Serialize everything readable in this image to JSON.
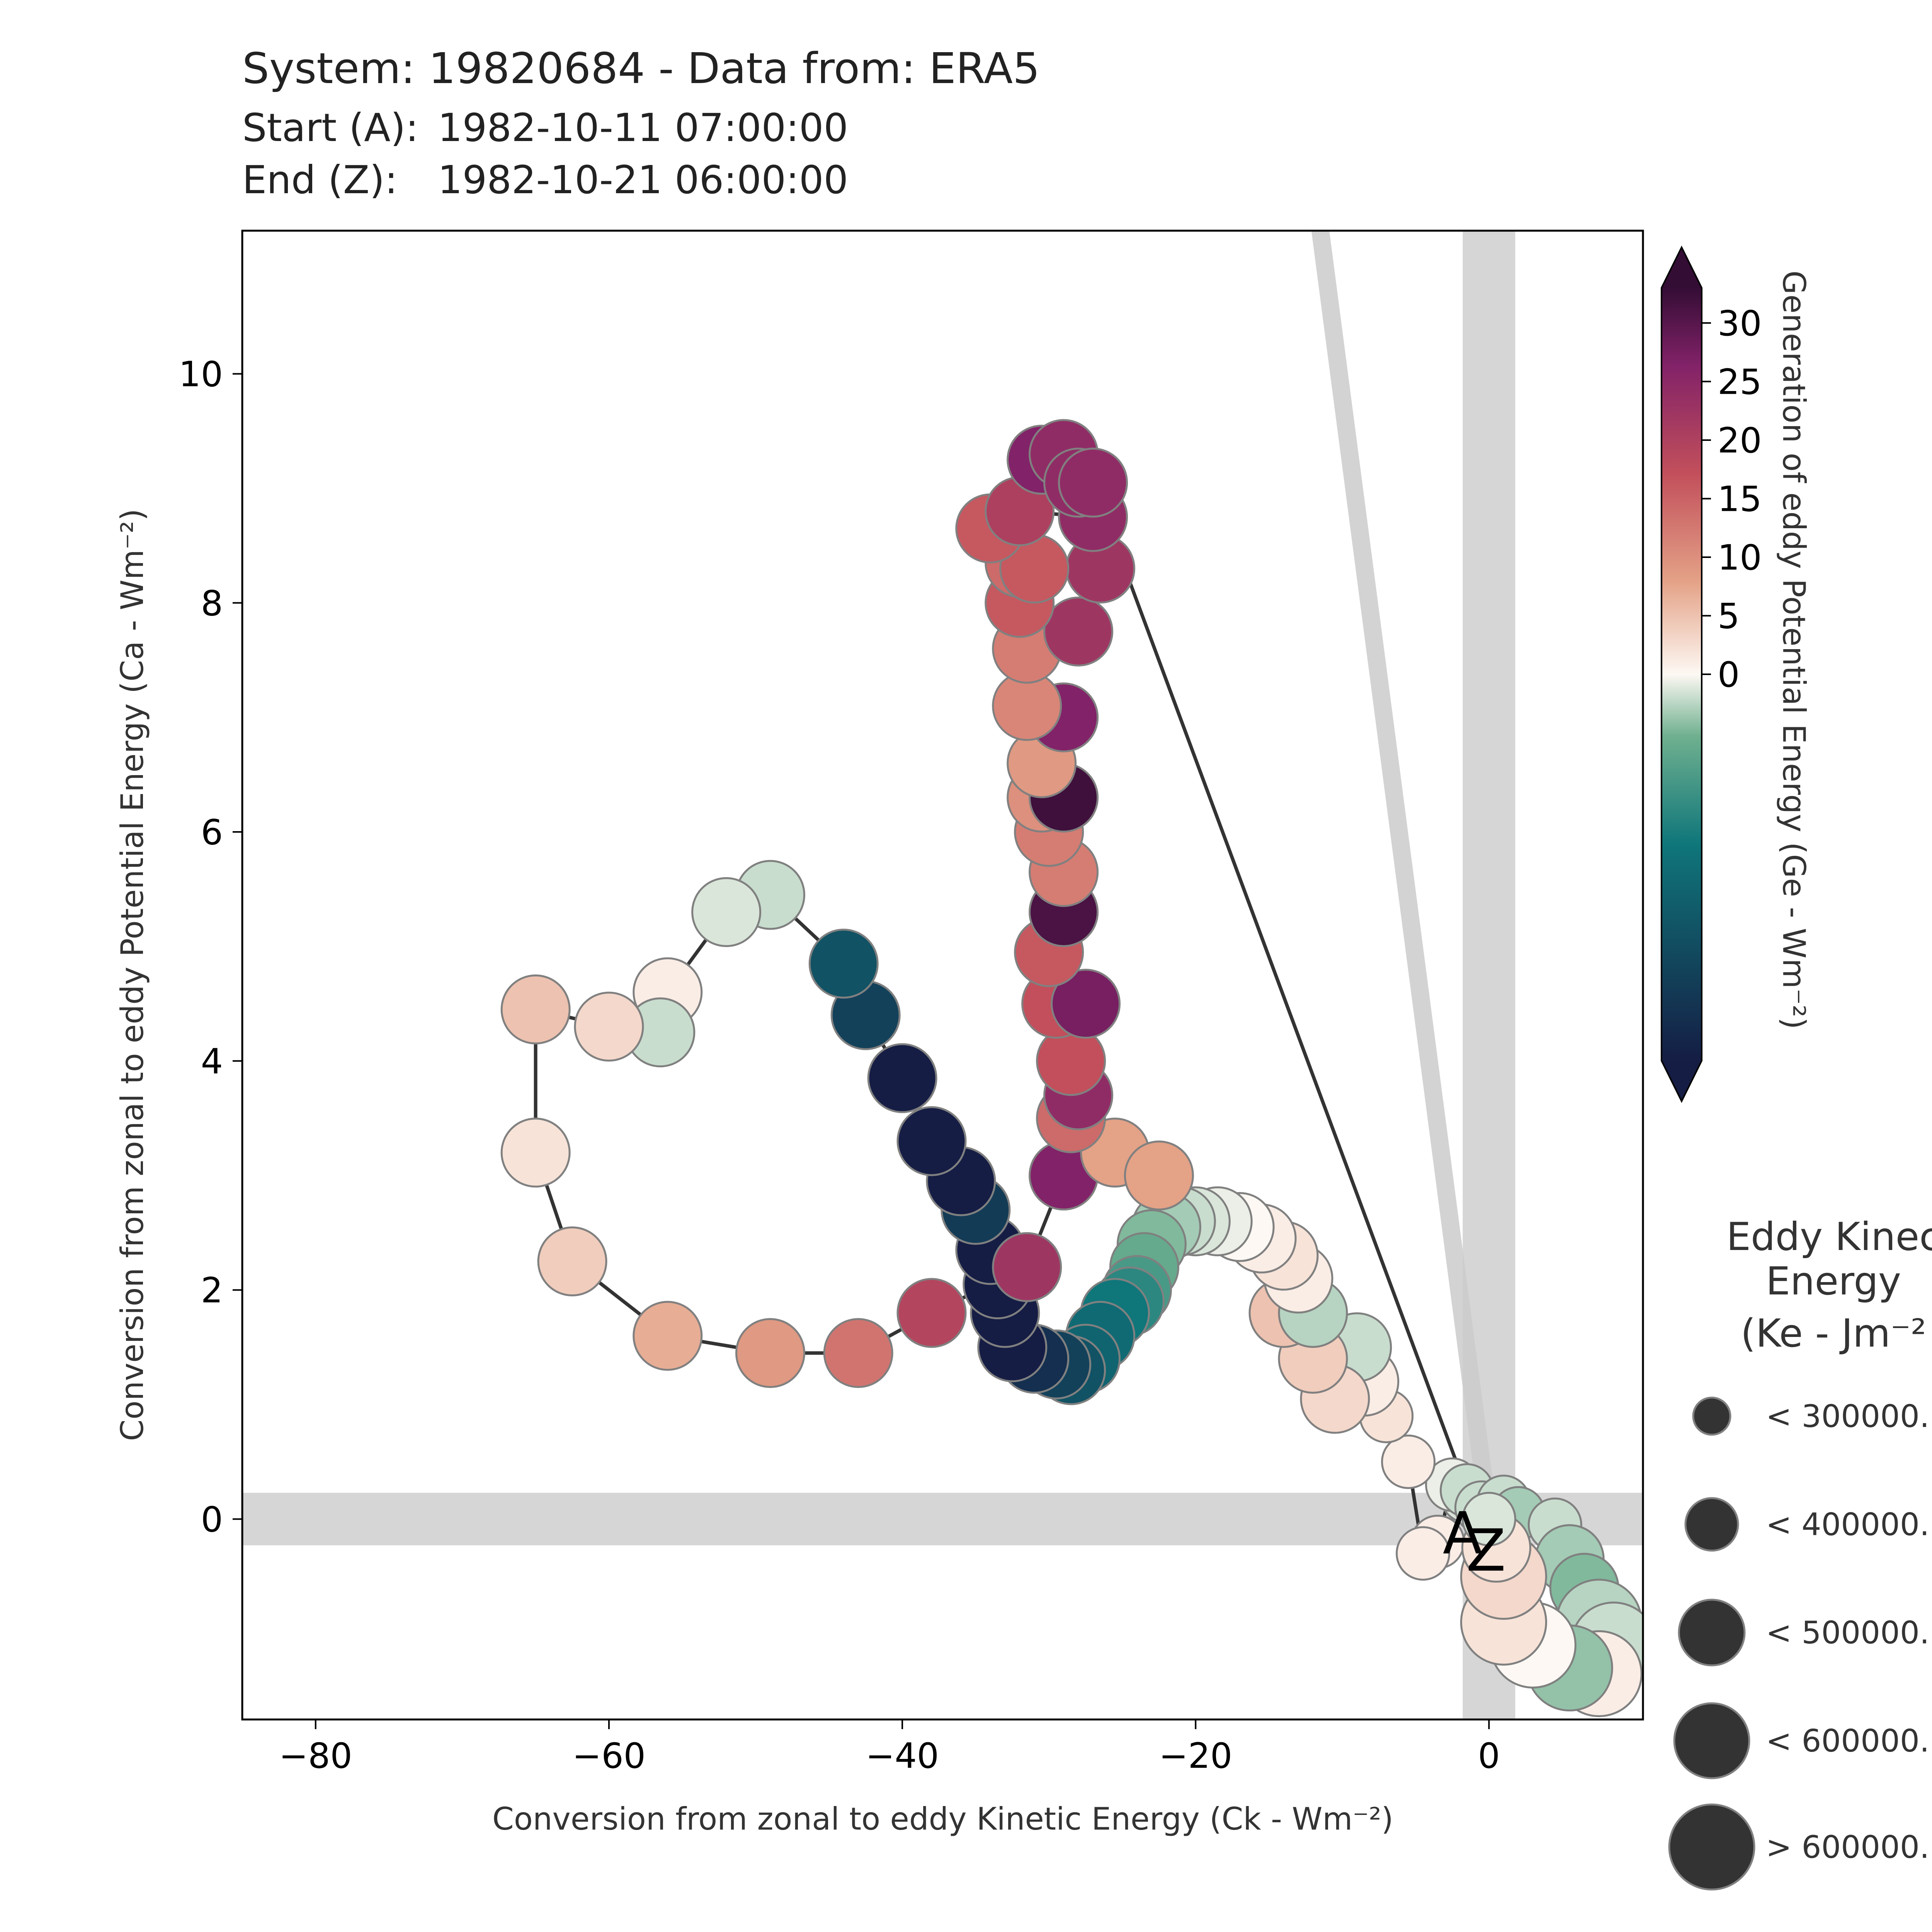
{
  "header": {
    "title": "System: 19820684 - Data from: ERA5",
    "start_label": "Start (A):",
    "start_value": "1982-10-11 07:00:00",
    "end_label": "End (Z):",
    "end_value": "1982-10-21 06:00:00"
  },
  "chart_data": {
    "type": "scatter",
    "xlabel": "Conversion from zonal to eddy Kinetic Energy (Ck -  Wm⁻²)",
    "ylabel": "Conversion from zonal to eddy Potential Energy (Ca -  Wm⁻²)",
    "xlim": [
      -85,
      10.5
    ],
    "ylim": [
      -1.75,
      11.25
    ],
    "xticks": [
      -80,
      -60,
      -40,
      -20,
      0
    ],
    "yticks": [
      0,
      2,
      4,
      6,
      8,
      10
    ],
    "grid": false,
    "reference_bands": [
      "x = 0",
      "y = 0"
    ],
    "start_marker": "A",
    "end_marker": "Z",
    "colorbar": {
      "label": "Generation of eddy Potential Energy (Ge -  Wm⁻²)",
      "ticks": [
        0,
        5,
        10,
        15,
        20,
        25,
        30
      ],
      "range": [
        -33,
        33
      ],
      "colormap": "curl (green-white-red-purple)"
    },
    "size_legend": {
      "title_lines": [
        "Eddy Kinec",
        "Energy",
        "(Ke -  Jm⁻²"
      ],
      "entries": [
        "< 300000.",
        "< 400000.",
        "< 500000.",
        "< 600000.",
        "> 600000."
      ]
    },
    "points": [
      {
        "x": -1.5,
        "y": 0.2,
        "ge": -2,
        "size": 2
      },
      {
        "x": -2.5,
        "y": 0.3,
        "ge": -1,
        "size": 2
      },
      {
        "x": -3.5,
        "y": -0.2,
        "ge": 1,
        "size": 2
      },
      {
        "x": -4.5,
        "y": -0.3,
        "ge": 1,
        "size": 2
      },
      {
        "x": -5.5,
        "y": 0.5,
        "ge": 1,
        "size": 2
      },
      {
        "x": -7,
        "y": 0.9,
        "ge": 2,
        "size": 2
      },
      {
        "x": -8.5,
        "y": 1.2,
        "ge": 1,
        "size": 3
      },
      {
        "x": -9,
        "y": 1.5,
        "ge": -3,
        "size": 3
      },
      {
        "x": -10.5,
        "y": 1.05,
        "ge": 3,
        "size": 3
      },
      {
        "x": -12,
        "y": 1.4,
        "ge": 4,
        "size": 3
      },
      {
        "x": -14,
        "y": 1.8,
        "ge": 5,
        "size": 3
      },
      {
        "x": -12,
        "y": 1.8,
        "ge": -4,
        "size": 3
      },
      {
        "x": -13,
        "y": 2.1,
        "ge": 1,
        "size": 3
      },
      {
        "x": -14,
        "y": 2.3,
        "ge": 2,
        "size": 3
      },
      {
        "x": -15.5,
        "y": 2.45,
        "ge": 1,
        "size": 3
      },
      {
        "x": -17,
        "y": 2.55,
        "ge": 0,
        "size": 3
      },
      {
        "x": -18.5,
        "y": 2.6,
        "ge": -1,
        "size": 3
      },
      {
        "x": -20,
        "y": 2.6,
        "ge": -2,
        "size": 3
      },
      {
        "x": -21,
        "y": 2.6,
        "ge": -3,
        "size": 3
      },
      {
        "x": -22,
        "y": 2.55,
        "ge": -5,
        "size": 3
      },
      {
        "x": -23,
        "y": 2.4,
        "ge": -7,
        "size": 3
      },
      {
        "x": -23.5,
        "y": 2.2,
        "ge": -9,
        "size": 3
      },
      {
        "x": -24,
        "y": 2.0,
        "ge": -12,
        "size": 3
      },
      {
        "x": -24.5,
        "y": 1.9,
        "ge": -15,
        "size": 3
      },
      {
        "x": -25.5,
        "y": 1.8,
        "ge": -18,
        "size": 3
      },
      {
        "x": -26.5,
        "y": 1.6,
        "ge": -20,
        "size": 3
      },
      {
        "x": -27.5,
        "y": 1.4,
        "ge": -21,
        "size": 3
      },
      {
        "x": -28.5,
        "y": 1.3,
        "ge": -24,
        "size": 3
      },
      {
        "x": -29.5,
        "y": 1.35,
        "ge": -27,
        "size": 3
      },
      {
        "x": -31,
        "y": 1.4,
        "ge": -30,
        "size": 3
      },
      {
        "x": -32.5,
        "y": 1.5,
        "ge": -33,
        "size": 3
      },
      {
        "x": -33,
        "y": 1.8,
        "ge": -33,
        "size": 3
      },
      {
        "x": -33.5,
        "y": 2.05,
        "ge": -33,
        "size": 3
      },
      {
        "x": -34,
        "y": 2.35,
        "ge": -33,
        "size": 3
      },
      {
        "x": -35,
        "y": 2.7,
        "ge": -28,
        "size": 3
      },
      {
        "x": -36,
        "y": 2.95,
        "ge": -33,
        "size": 3
      },
      {
        "x": -38,
        "y": 3.3,
        "ge": -33,
        "size": 3
      },
      {
        "x": -40,
        "y": 3.85,
        "ge": -33,
        "size": 3
      },
      {
        "x": -42.5,
        "y": 4.4,
        "ge": -27,
        "size": 3
      },
      {
        "x": -44,
        "y": 4.85,
        "ge": -24,
        "size": 3
      },
      {
        "x": -49,
        "y": 5.45,
        "ge": -3,
        "size": 3
      },
      {
        "x": -52,
        "y": 5.3,
        "ge": -2,
        "size": 3
      },
      {
        "x": -56,
        "y": 4.6,
        "ge": 1,
        "size": 3
      },
      {
        "x": -56.5,
        "y": 4.25,
        "ge": -3,
        "size": 3
      },
      {
        "x": -60,
        "y": 4.3,
        "ge": 3,
        "size": 3
      },
      {
        "x": -65,
        "y": 4.45,
        "ge": 5,
        "size": 3
      },
      {
        "x": -65,
        "y": 3.2,
        "ge": 2,
        "size": 3
      },
      {
        "x": -62.5,
        "y": 2.25,
        "ge": 4,
        "size": 3
      },
      {
        "x": -56,
        "y": 1.6,
        "ge": 7,
        "size": 3
      },
      {
        "x": -49,
        "y": 1.45,
        "ge": 9,
        "size": 3
      },
      {
        "x": -43,
        "y": 1.45,
        "ge": 13,
        "size": 3
      },
      {
        "x": -38,
        "y": 1.8,
        "ge": 19,
        "size": 3
      },
      {
        "x": -31.5,
        "y": 2.2,
        "ge": 22,
        "size": 3
      },
      {
        "x": -29,
        "y": 3.0,
        "ge": 26,
        "size": 3
      },
      {
        "x": -25.5,
        "y": 3.2,
        "ge": 8,
        "size": 3
      },
      {
        "x": -22.5,
        "y": 3.0,
        "ge": 8,
        "size": 3
      },
      {
        "x": -28.5,
        "y": 3.5,
        "ge": 14,
        "size": 3
      },
      {
        "x": -28,
        "y": 3.7,
        "ge": 24,
        "size": 3
      },
      {
        "x": -28.5,
        "y": 4.0,
        "ge": 17,
        "size": 3
      },
      {
        "x": -29.5,
        "y": 4.5,
        "ge": 17,
        "size": 3
      },
      {
        "x": -27.5,
        "y": 4.5,
        "ge": 27,
        "size": 3
      },
      {
        "x": -30,
        "y": 4.95,
        "ge": 16,
        "size": 3
      },
      {
        "x": -29,
        "y": 5.3,
        "ge": 31,
        "size": 3
      },
      {
        "x": -29,
        "y": 5.65,
        "ge": 12,
        "size": 3
      },
      {
        "x": -30,
        "y": 6.0,
        "ge": 12,
        "size": 3
      },
      {
        "x": -30.5,
        "y": 6.3,
        "ge": 10,
        "size": 3
      },
      {
        "x": -29,
        "y": 6.3,
        "ge": 32,
        "size": 3
      },
      {
        "x": -30.5,
        "y": 6.6,
        "ge": 9,
        "size": 3
      },
      {
        "x": -29,
        "y": 7.0,
        "ge": 26,
        "size": 3
      },
      {
        "x": -31.5,
        "y": 7.1,
        "ge": 11,
        "size": 3
      },
      {
        "x": -31.5,
        "y": 7.6,
        "ge": 12,
        "size": 3
      },
      {
        "x": -28,
        "y": 7.75,
        "ge": 22,
        "size": 3
      },
      {
        "x": -32,
        "y": 8.0,
        "ge": 16,
        "size": 3
      },
      {
        "x": -32,
        "y": 8.35,
        "ge": 14,
        "size": 3
      },
      {
        "x": -26.5,
        "y": 8.3,
        "ge": 22,
        "size": 3
      },
      {
        "x": -31,
        "y": 8.3,
        "ge": 16,
        "size": 3
      },
      {
        "x": -34,
        "y": 8.65,
        "ge": 16,
        "size": 3
      },
      {
        "x": -32,
        "y": 8.8,
        "ge": 20,
        "size": 3
      },
      {
        "x": -27,
        "y": 8.75,
        "ge": 24,
        "size": 3
      },
      {
        "x": -30.5,
        "y": 9.25,
        "ge": 26,
        "size": 3
      },
      {
        "x": -29,
        "y": 9.3,
        "ge": 24,
        "size": 3
      },
      {
        "x": -28,
        "y": 9.05,
        "ge": 24,
        "size": 3
      },
      {
        "x": -27,
        "y": 9.05,
        "ge": 24,
        "size": 3
      },
      {
        "x": -1.5,
        "y": 0.25,
        "ge": -3,
        "size": 2
      },
      {
        "x": -0.5,
        "y": 0.1,
        "ge": -3,
        "size": 2
      },
      {
        "x": 0,
        "y": 0.0,
        "ge": 0,
        "size": 2
      },
      {
        "x": 1,
        "y": 0.15,
        "ge": -3,
        "size": 2
      },
      {
        "x": 2,
        "y": 0.05,
        "ge": -5,
        "size": 2
      },
      {
        "x": 4.5,
        "y": -0.05,
        "ge": -3,
        "size": 2
      },
      {
        "x": 5.5,
        "y": -0.35,
        "ge": -5,
        "size": 3
      },
      {
        "x": 6.5,
        "y": -0.6,
        "ge": -7,
        "size": 3
      },
      {
        "x": 7.5,
        "y": -0.9,
        "ge": -4,
        "size": 4
      },
      {
        "x": 8.5,
        "y": -1.1,
        "ge": -3,
        "size": 4
      },
      {
        "x": 7.5,
        "y": -1.35,
        "ge": 1,
        "size": 4
      },
      {
        "x": 5.5,
        "y": -1.3,
        "ge": -6,
        "size": 4
      },
      {
        "x": 3,
        "y": -1.1,
        "ge": 0,
        "size": 4
      },
      {
        "x": 1,
        "y": -0.9,
        "ge": 2,
        "size": 4
      },
      {
        "x": 1,
        "y": -0.5,
        "ge": 3,
        "size": 4
      },
      {
        "x": 0.5,
        "y": -0.25,
        "ge": 2,
        "size": 3
      },
      {
        "x": 0,
        "y": 0.0,
        "ge": -2,
        "size": 2
      }
    ]
  }
}
